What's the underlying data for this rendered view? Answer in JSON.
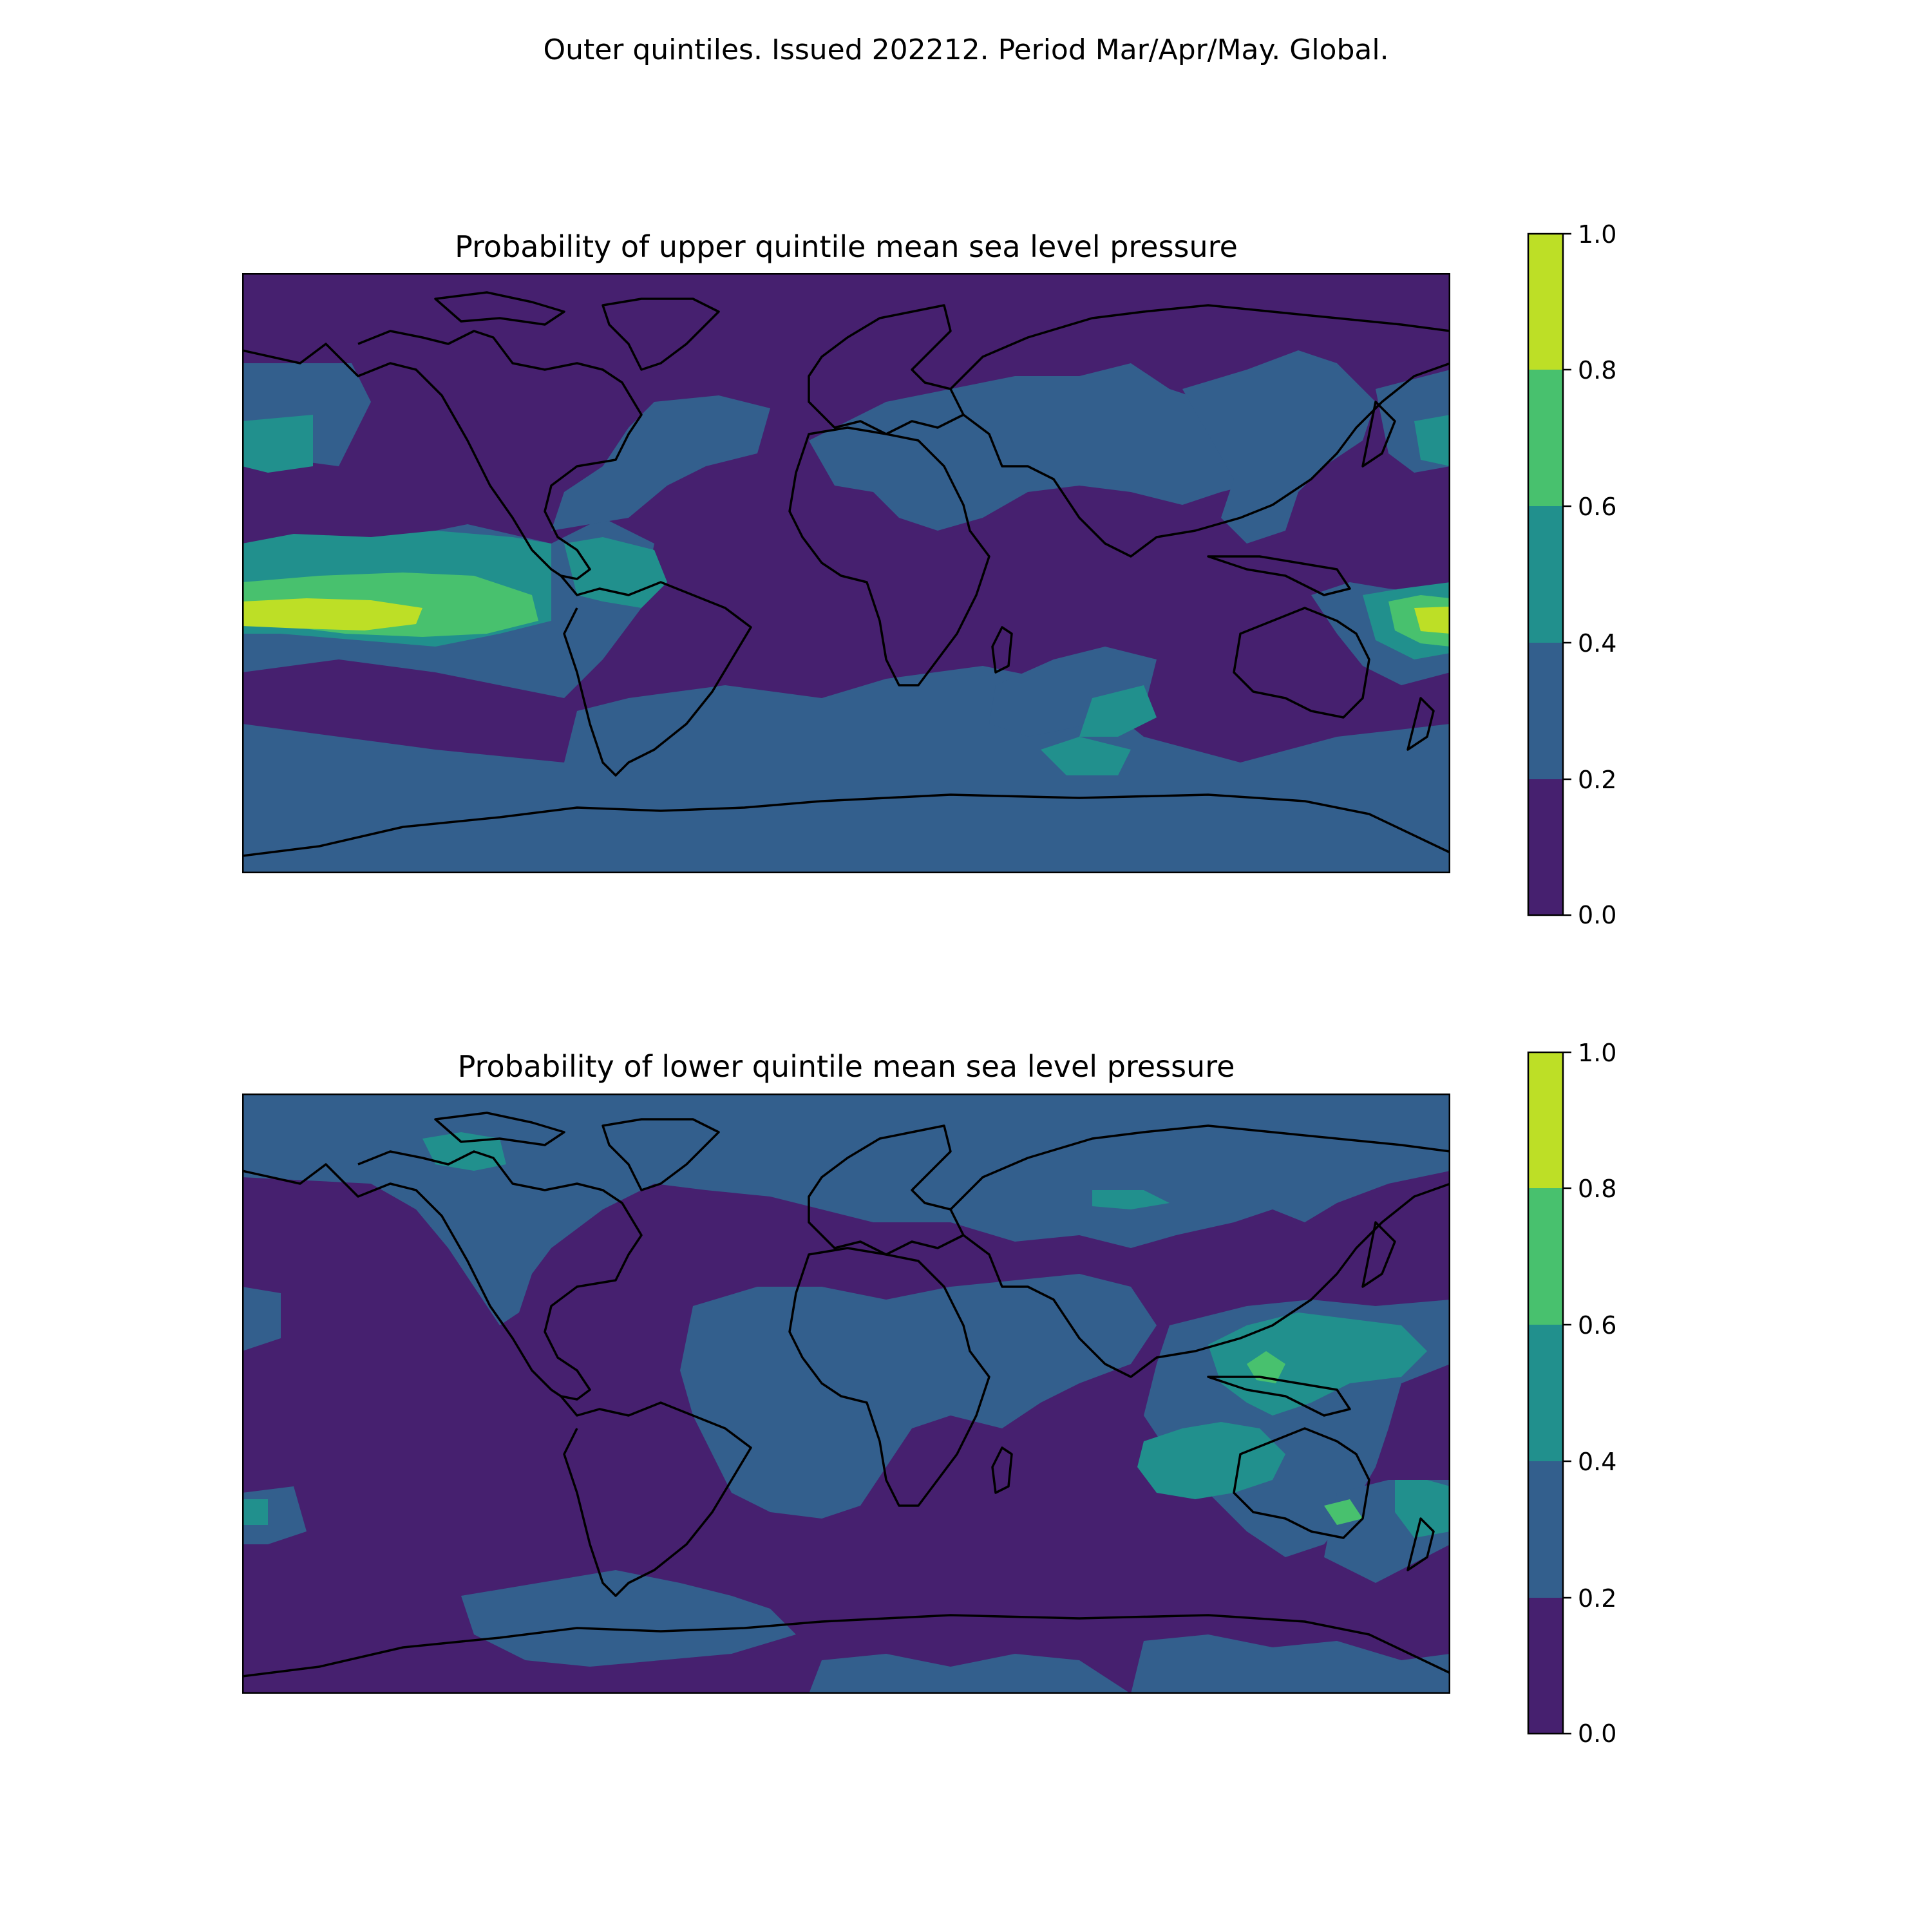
{
  "figure": {
    "title": "Outer quintiles. Issued 202212. Period Mar/Apr/May. Global."
  },
  "colormap": {
    "name": "viridis",
    "levels": [
      0.0,
      0.2,
      0.4,
      0.6,
      0.8,
      1.0
    ],
    "colors": [
      "#46206f",
      "#335f8d",
      "#21908d",
      "#48c16e",
      "#bddf26"
    ]
  },
  "panels": [
    {
      "id": "upper",
      "title": "Probability of upper quintile mean sea level pressure",
      "colorbar_ticks": [
        "0.0",
        "0.2",
        "0.4",
        "0.6",
        "0.8",
        "1.0"
      ]
    },
    {
      "id": "lower",
      "title": "Probability of lower quintile mean sea level pressure",
      "colorbar_ticks": [
        "0.0",
        "0.2",
        "0.4",
        "0.6",
        "0.8",
        "1.0"
      ]
    }
  ]
}
